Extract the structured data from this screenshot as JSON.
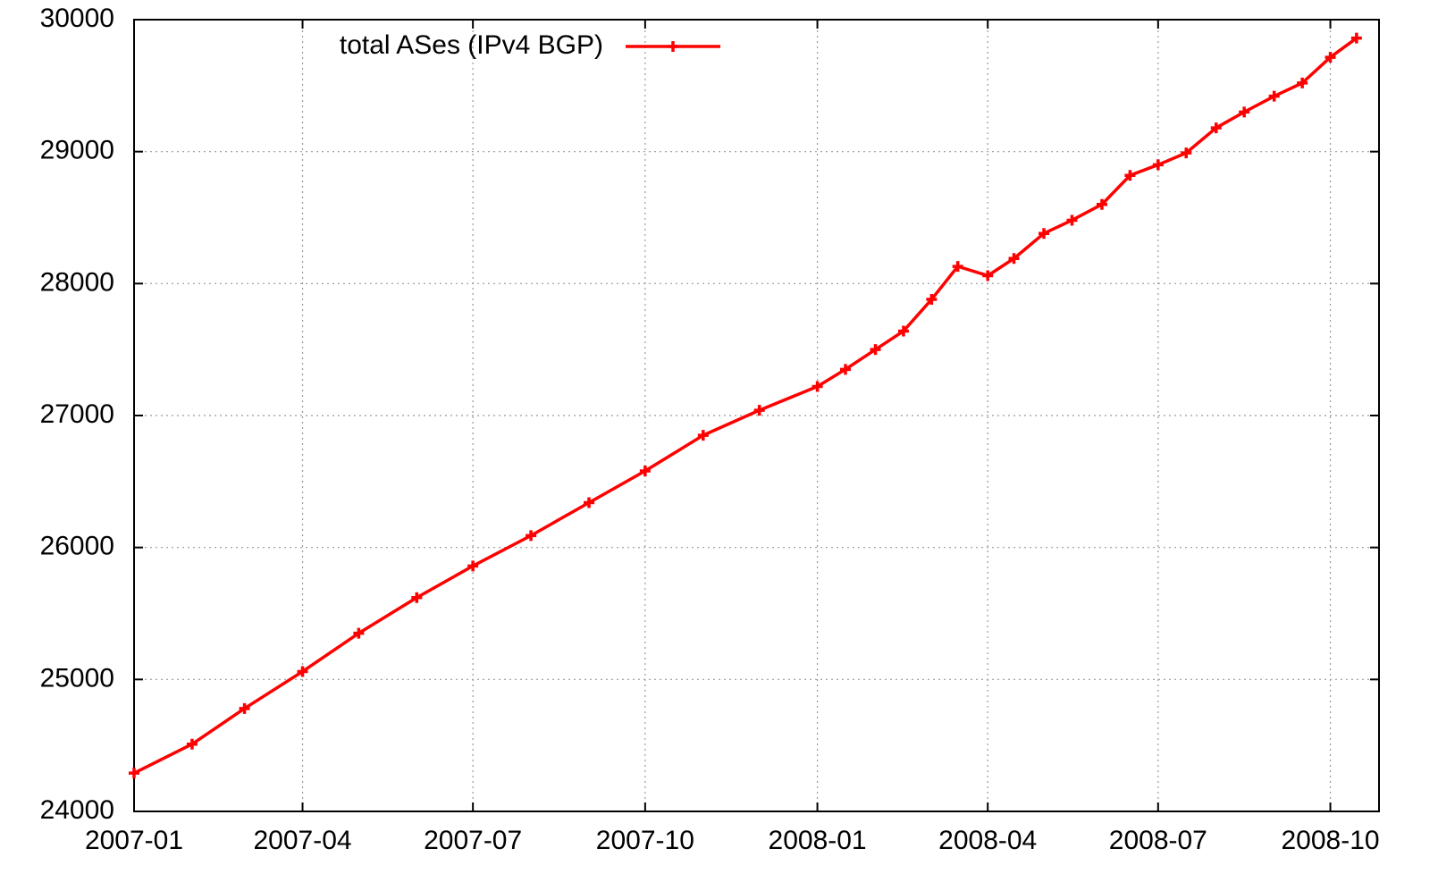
{
  "chart_data": {
    "type": "line",
    "x": [
      "2007-01-01",
      "2007-02-01",
      "2007-03-01",
      "2007-04-01",
      "2007-05-01",
      "2007-06-01",
      "2007-07-01",
      "2007-08-01",
      "2007-09-01",
      "2007-10-01",
      "2007-11-01",
      "2007-12-01",
      "2008-01-01",
      "2008-01-16",
      "2008-02-01",
      "2008-02-16",
      "2008-03-02",
      "2008-03-16",
      "2008-04-01",
      "2008-04-15",
      "2008-05-01",
      "2008-05-16",
      "2008-06-01",
      "2008-06-16",
      "2008-07-01",
      "2008-07-16",
      "2008-08-01",
      "2008-08-16",
      "2008-09-01",
      "2008-09-16",
      "2008-10-01",
      "2008-10-15"
    ],
    "series": [
      {
        "name": "total ASes (IPv4 BGP)",
        "color": "#ff0000",
        "values": [
          24290,
          24510,
          24780,
          25060,
          25350,
          25620,
          25860,
          26090,
          26340,
          26580,
          26850,
          27040,
          27220,
          27350,
          27500,
          27640,
          27880,
          28130,
          28060,
          28190,
          28380,
          28480,
          28600,
          28820,
          28900,
          28990,
          29180,
          29300,
          29420,
          29520,
          29715,
          29860
        ]
      }
    ],
    "xlim": [
      "2007-01-01",
      "2008-10-27"
    ],
    "xticks": [
      "2007-01",
      "2007-04",
      "2007-07",
      "2007-10",
      "2008-01",
      "2008-04",
      "2008-07",
      "2008-10"
    ],
    "ylim": [
      24000,
      30000
    ],
    "yticks": [
      24000,
      25000,
      26000,
      27000,
      28000,
      29000,
      30000
    ],
    "grid": true,
    "legend": "top-left"
  }
}
